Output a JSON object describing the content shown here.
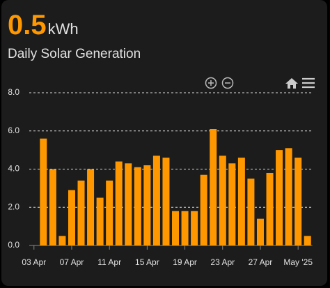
{
  "header": {
    "value": 0.5,
    "unit": "kWh",
    "name": "Daily Solar Generation"
  },
  "chart_data": {
    "type": "bar",
    "color": "#ff9800",
    "categories": [
      "03 Apr",
      null,
      null,
      null,
      "07 Apr",
      null,
      null,
      null,
      "11 Apr",
      null,
      null,
      null,
      "15 Apr",
      null,
      null,
      null,
      "19 Apr",
      null,
      null,
      null,
      "23 Apr",
      null,
      null,
      null,
      "27 Apr",
      null,
      null,
      null,
      "May '25",
      null
    ],
    "values": [
      null,
      5.6,
      4.0,
      0.5,
      2.9,
      3.4,
      4.0,
      2.5,
      3.4,
      4.4,
      4.3,
      4.1,
      4.2,
      4.7,
      4.6,
      1.8,
      1.8,
      1.8,
      3.7,
      6.1,
      4.7,
      4.3,
      4.6,
      3.5,
      1.4,
      3.8,
      5.0,
      5.1,
      4.6,
      0.5
    ],
    "ylim": [
      0,
      8
    ],
    "yticks": [
      {
        "value": 0,
        "label": "0.0"
      },
      {
        "value": 2,
        "label": "2.0"
      },
      {
        "value": 4,
        "label": "4.0"
      },
      {
        "value": 6,
        "label": "6.0"
      },
      {
        "value": 8,
        "label": "8.0"
      }
    ],
    "grid": true
  }
}
